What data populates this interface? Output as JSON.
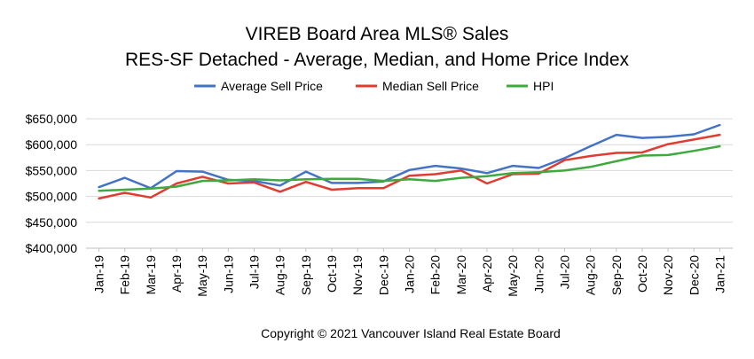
{
  "chart_data": {
    "type": "line",
    "title": "VIREB Board Area MLS® Sales",
    "subtitle": "RES-SF Detached - Average, Median, and Home Price Index",
    "xlabel": "",
    "ylabel": "",
    "categories": [
      "Jan-19",
      "Feb-19",
      "Mar-19",
      "Apr-19",
      "May-19",
      "Jun-19",
      "Jul-19",
      "Aug-19",
      "Sep-19",
      "Oct-19",
      "Nov-19",
      "Dec-19",
      "Jan-20",
      "Feb-20",
      "Mar-20",
      "Apr-20",
      "May-20",
      "Jun-20",
      "Jul-20",
      "Aug-20",
      "Sep-20",
      "Oct-20",
      "Nov-20",
      "Dec-20",
      "Jan-21"
    ],
    "ylim": [
      400000,
      650000
    ],
    "yticks": [
      400000,
      450000,
      500000,
      550000,
      600000,
      650000
    ],
    "ytick_labels": [
      "$400,000",
      "$450,000",
      "$500,000",
      "$550,000",
      "$600,000",
      "$650,000"
    ],
    "grid": "horizontal",
    "legend_position": "top",
    "series": [
      {
        "name": "Average Sell Price",
        "color": "#4472C4",
        "values": [
          518000,
          536000,
          516000,
          549000,
          548000,
          532000,
          530000,
          521000,
          548000,
          526000,
          526000,
          529000,
          551000,
          559000,
          554000,
          545000,
          559000,
          555000,
          574000,
          597000,
          619000,
          613000,
          615000,
          620000,
          638000
        ]
      },
      {
        "name": "Median Sell Price",
        "color": "#E03C31",
        "values": [
          496000,
          507000,
          498000,
          525000,
          538000,
          525000,
          527000,
          509000,
          528000,
          513000,
          516000,
          516000,
          540000,
          543000,
          550000,
          525000,
          543000,
          544000,
          570000,
          578000,
          584000,
          585000,
          601000,
          610000,
          619000
        ]
      },
      {
        "name": "HPI",
        "color": "#3EAA3E",
        "values": [
          511000,
          513000,
          515000,
          519000,
          530000,
          531000,
          533000,
          531000,
          533000,
          534000,
          534000,
          530000,
          533000,
          530000,
          536000,
          539000,
          545000,
          547000,
          550000,
          557000,
          568000,
          579000,
          580000,
          588000,
          597000
        ]
      }
    ]
  },
  "footer": {
    "copyright": "Copyright © 2021 Vancouver Island Real Estate Board"
  }
}
